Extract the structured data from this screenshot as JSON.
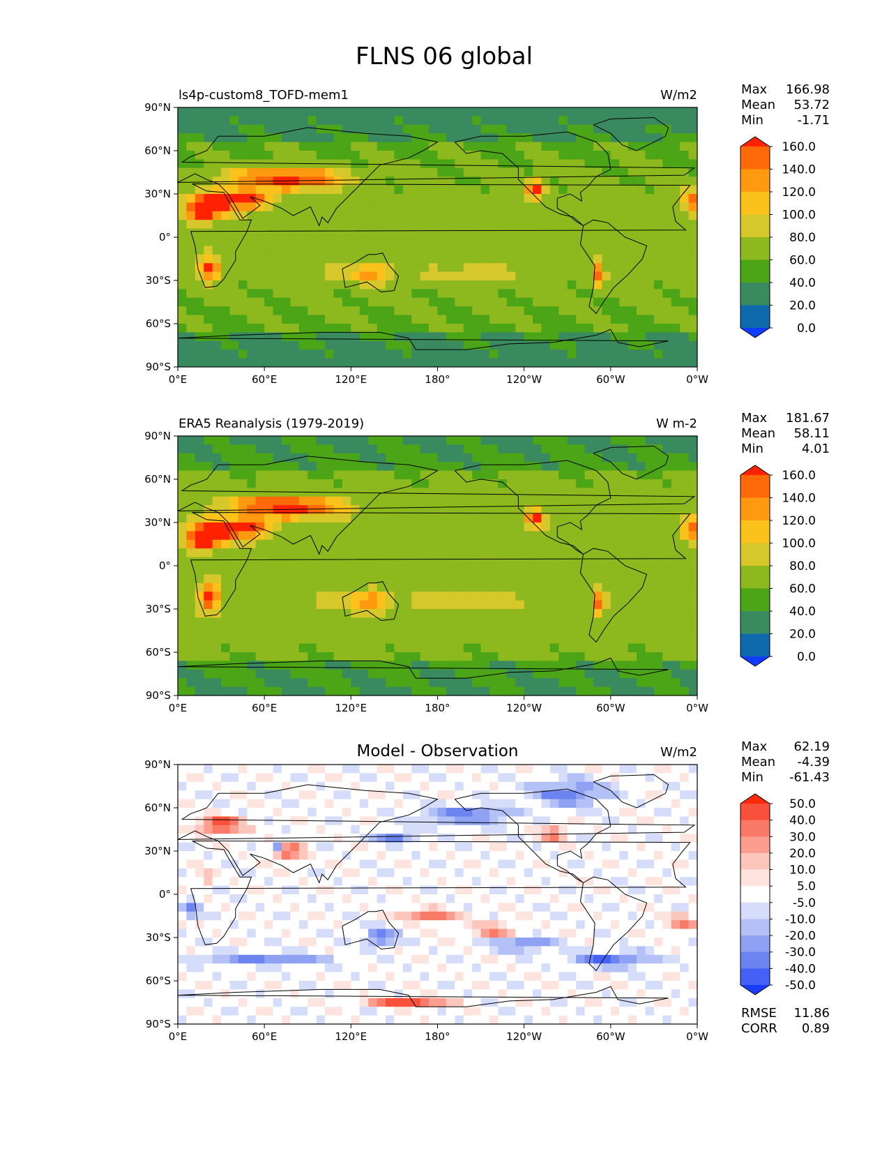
{
  "figure": {
    "title": "FLNS 06 global"
  },
  "axes": {
    "lat_ticks": [
      "90°N",
      "60°N",
      "30°N",
      "0°",
      "30°S",
      "60°S",
      "90°S"
    ],
    "lon_ticks": [
      "0°E",
      "60°E",
      "120°E",
      "180°",
      "120°W",
      "60°W",
      "0°W"
    ]
  },
  "panels": [
    {
      "left_title": "ls4p-custom8_TOFD-mem1",
      "center_title": "",
      "units": "W/m2",
      "stats": [
        {
          "label": "Max",
          "value": "166.98"
        },
        {
          "label": "Mean",
          "value": "53.72"
        },
        {
          "label": "Min",
          "value": "-1.71"
        }
      ],
      "colorbar_labels": [
        "160.0",
        "140.0",
        "120.0",
        "100.0",
        "80.0",
        "60.0",
        "40.0",
        "20.0",
        "0.0"
      ],
      "colors": [
        "#ff2200",
        "#ff6a08",
        "#ff9a10",
        "#fcc21c",
        "#d6c72a",
        "#8db81e",
        "#4ba516",
        "#3a8a5f",
        "#0e6aab",
        "#0f3cff"
      ],
      "footer": []
    },
    {
      "left_title": "ERA5 Reanalysis (1979-2019)",
      "center_title": "",
      "units": "W m-2",
      "stats": [
        {
          "label": "Max",
          "value": "181.67"
        },
        {
          "label": "Mean",
          "value": "58.11"
        },
        {
          "label": "Min",
          "value": "4.01"
        }
      ],
      "colorbar_labels": [
        "160.0",
        "140.0",
        "120.0",
        "100.0",
        "80.0",
        "60.0",
        "40.0",
        "20.0",
        "0.0"
      ],
      "colors": [
        "#ff2200",
        "#ff6a08",
        "#ff9a10",
        "#fcc21c",
        "#d6c72a",
        "#8db81e",
        "#4ba516",
        "#3a8a5f",
        "#0e6aab",
        "#0f3cff"
      ],
      "footer": []
    },
    {
      "left_title": "",
      "center_title": "Model - Observation",
      "units": "W/m2",
      "stats": [
        {
          "label": "Max",
          "value": "62.19"
        },
        {
          "label": "Mean",
          "value": "-4.39"
        },
        {
          "label": "Min",
          "value": "-61.43"
        }
      ],
      "colorbar_labels": [
        "50.0",
        "40.0",
        "30.0",
        "20.0",
        "10.0",
        "5.0",
        "-5.0",
        "-10.0",
        "-20.0",
        "-30.0",
        "-40.0",
        "-50.0"
      ],
      "colors": [
        "#ff2a0a",
        "#f8503a",
        "#f97a66",
        "#fb9e8f",
        "#fdc6bd",
        "#fde4df",
        "#ffffff",
        "#d6ddfb",
        "#b3c1f7",
        "#8ea1f2",
        "#6c84f0",
        "#4462f6",
        "#1a3cff"
      ],
      "footer": [
        {
          "label": "RMSE",
          "value": "11.86"
        },
        {
          "label": "CORR",
          "value": "0.89"
        }
      ]
    }
  ],
  "chart_data": [
    {
      "type": "heatmap",
      "title": "ls4p-custom8_TOFD-mem1",
      "units": "W/m2",
      "xlim": [
        0,
        360
      ],
      "ylim": [
        -90,
        90
      ],
      "levels": [
        0,
        20,
        40,
        60,
        80,
        100,
        120,
        140,
        160
      ],
      "stats": {
        "max": 166.98,
        "mean": 53.72,
        "min": -1.71
      }
    },
    {
      "type": "heatmap",
      "title": "ERA5 Reanalysis (1979-2019)",
      "units": "W m-2",
      "xlim": [
        0,
        360
      ],
      "ylim": [
        -90,
        90
      ],
      "levels": [
        0,
        20,
        40,
        60,
        80,
        100,
        120,
        140,
        160
      ],
      "stats": {
        "max": 181.67,
        "mean": 58.11,
        "min": 4.01
      }
    },
    {
      "type": "heatmap",
      "title": "Model - Observation",
      "units": "W/m2",
      "xlim": [
        0,
        360
      ],
      "ylim": [
        -90,
        90
      ],
      "levels": [
        -50,
        -40,
        -30,
        -20,
        -10,
        -5,
        5,
        10,
        20,
        30,
        40,
        50
      ],
      "stats": {
        "max": 62.19,
        "mean": -4.39,
        "min": -61.43,
        "rmse": 11.86,
        "corr": 0.89
      }
    }
  ]
}
